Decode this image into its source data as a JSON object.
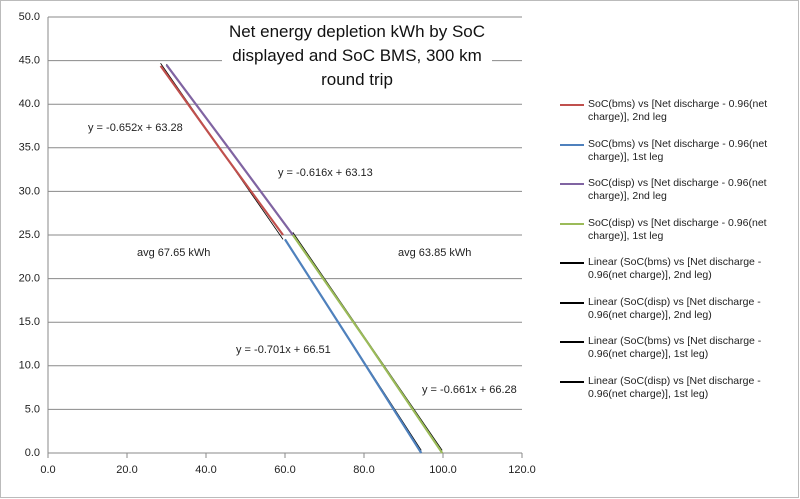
{
  "chart_data": {
    "type": "line",
    "title": "Net energy  depletion  kWh by SoC displayed and SoC BMS, 300 km round trip",
    "xlim": [
      0,
      120
    ],
    "xticks": [
      {
        "value": 0,
        "label": "0.0"
      },
      {
        "value": 20,
        "label": "20.0"
      },
      {
        "value": 40,
        "label": "40.0"
      },
      {
        "value": 60,
        "label": "60.0"
      },
      {
        "value": 80,
        "label": "80.0"
      },
      {
        "value": 100,
        "label": "100.0"
      },
      {
        "value": 120,
        "label": "120.0"
      }
    ],
    "ylim": [
      0,
      50
    ],
    "yticks": [
      {
        "value": 0,
        "label": "0.0"
      },
      {
        "value": 5,
        "label": "5.0"
      },
      {
        "value": 10,
        "label": "10.0"
      },
      {
        "value": 15,
        "label": "15.0"
      },
      {
        "value": 20,
        "label": "20.0"
      },
      {
        "value": 25,
        "label": "25.0"
      },
      {
        "value": 30,
        "label": "30.0"
      },
      {
        "value": 35,
        "label": "35.0"
      },
      {
        "value": 40,
        "label": "40.0"
      },
      {
        "value": 45,
        "label": "45.0"
      },
      {
        "value": 50,
        "label": "50.0"
      }
    ],
    "grid": true,
    "legend": "right",
    "series": [
      {
        "name": "SoC(bms) vs [Net discharge - 0.96(net charge)], 2nd leg",
        "color": "#c0504d",
        "x": [
          28.5,
          44,
          59.5
        ],
        "values": [
          44.4,
          34.6,
          25
        ]
      },
      {
        "name": "SoC(bms) vs [Net discharge - 0.96(net charge)], 1st leg",
        "color": "#4f81bd",
        "x": [
          60,
          77,
          94.5
        ],
        "values": [
          24.5,
          12.5,
          0
        ]
      },
      {
        "name": "SoC(disp) vs [Net discharge - 0.96(net charge)], 2nd leg",
        "color": "#8064a2",
        "x": [
          30,
          46,
          62
        ],
        "values": [
          44.5,
          34.8,
          25
        ]
      },
      {
        "name": "SoC(disp) vs [Net discharge - 0.96(net charge)], 1st leg",
        "color": "#9bbb59",
        "x": [
          62,
          81,
          99.8
        ],
        "values": [
          25,
          12.6,
          0
        ]
      },
      {
        "name": "Linear (SoC(bms) vs [Net discharge - 0.96(net charge)], 2nd leg)",
        "color": "#000000",
        "x": [
          28.5,
          59.5
        ],
        "values": [
          44.7,
          24.5
        ]
      },
      {
        "name": "Linear (SoC(disp) vs [Net discharge - 0.96(net charge)], 2nd leg)",
        "color": "#000000",
        "x": [
          30,
          62
        ],
        "values": [
          44.6,
          24.9
        ]
      },
      {
        "name": "Linear (SoC(bms) vs [Net discharge - 0.96(net charge)], 1st leg)",
        "color": "#000000",
        "x": [
          60,
          94.5
        ],
        "values": [
          24.5,
          0.3
        ]
      },
      {
        "name": "Linear (SoC(disp) vs [Net discharge - 0.96(net charge)], 1st leg)",
        "color": "#000000",
        "x": [
          62,
          99.8
        ],
        "values": [
          25.3,
          0.3
        ]
      }
    ],
    "annotations": [
      "y = -0.652x + 63.28",
      "y = -0.616x + 63.13",
      "avg 67.65  kWh",
      "avg 63.85  kWh",
      "y = -0.701x + 66.51",
      "y = -0.661x + 66.28"
    ]
  }
}
